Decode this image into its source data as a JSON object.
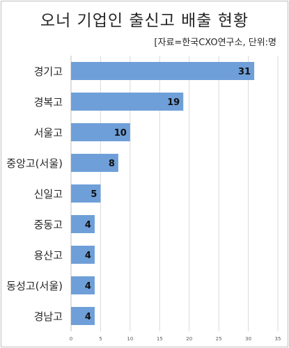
{
  "title": "오너 기업인 출신고 배출 현황",
  "source_note": "[자료=한국CXO연구소, 단위:명",
  "chart_data": {
    "type": "bar",
    "orientation": "horizontal",
    "categories": [
      "경기고",
      "경복고",
      "서울고",
      "중앙고(서울)",
      "신일고",
      "중동고",
      "용산고",
      "동성고(서울)",
      "경남고"
    ],
    "values": [
      31,
      19,
      10,
      8,
      5,
      4,
      4,
      4,
      4
    ],
    "xlim": [
      0,
      35
    ],
    "xticks": [
      0,
      5,
      10,
      15,
      20,
      25,
      30,
      35
    ],
    "grid": true,
    "bar_color": "#6f9fd8",
    "data_labels": true
  }
}
